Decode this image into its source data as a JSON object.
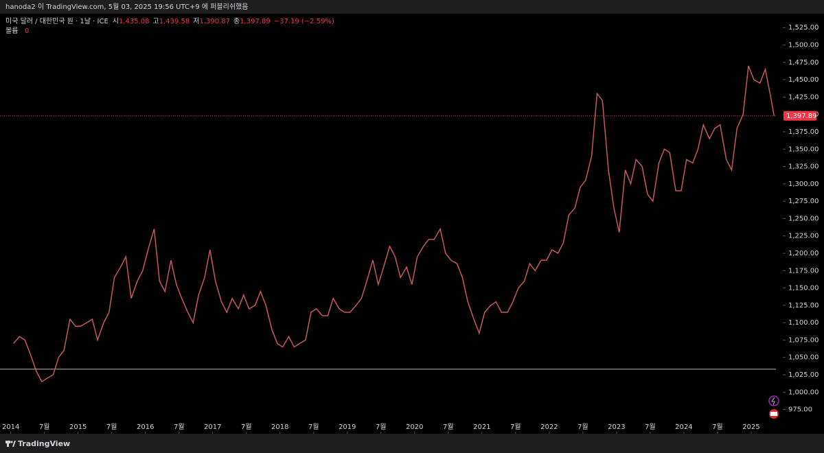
{
  "header": {
    "text": "hanoda2 이 TradingView.com, 5월 03, 2025 19:56 UTC+9 에 퍼블리쉬했음"
  },
  "footer": {
    "brand": "TradingView"
  },
  "chart_data": {
    "type": "line",
    "legend": {
      "symbol": "미국 달러 / 대한민국 원 · 1날 · ICE",
      "open_label": "시",
      "open": "1,435.08",
      "high_label": "고",
      "high": "1,439.58",
      "low_label": "저",
      "low": "1,390.87",
      "close_label": "종",
      "close": "1,397.89",
      "change": "−37.19 (−2.59%)",
      "volume_label": "볼륨",
      "volume": "0"
    },
    "series": [
      {
        "name": "USDKRW",
        "color": "#c9595b",
        "x": [
          2014.04,
          2014.13,
          2014.21,
          2014.29,
          2014.38,
          2014.46,
          2014.54,
          2014.63,
          2014.71,
          2014.79,
          2014.88,
          2014.96,
          2015.04,
          2015.13,
          2015.21,
          2015.29,
          2015.38,
          2015.46,
          2015.54,
          2015.63,
          2015.71,
          2015.79,
          2015.88,
          2015.96,
          2016.04,
          2016.13,
          2016.21,
          2016.29,
          2016.38,
          2016.46,
          2016.54,
          2016.63,
          2016.71,
          2016.79,
          2016.88,
          2016.96,
          2017.04,
          2017.13,
          2017.21,
          2017.29,
          2017.38,
          2017.46,
          2017.54,
          2017.63,
          2017.71,
          2017.79,
          2017.88,
          2017.96,
          2018.04,
          2018.13,
          2018.21,
          2018.29,
          2018.38,
          2018.46,
          2018.54,
          2018.63,
          2018.71,
          2018.79,
          2018.88,
          2018.96,
          2019.04,
          2019.13,
          2019.21,
          2019.29,
          2019.38,
          2019.46,
          2019.54,
          2019.63,
          2019.71,
          2019.79,
          2019.88,
          2019.96,
          2020.04,
          2020.13,
          2020.21,
          2020.29,
          2020.38,
          2020.46,
          2020.54,
          2020.63,
          2020.71,
          2020.79,
          2020.88,
          2020.96,
          2021.04,
          2021.13,
          2021.21,
          2021.29,
          2021.38,
          2021.46,
          2021.54,
          2021.63,
          2021.71,
          2021.79,
          2021.88,
          2021.96,
          2022.04,
          2022.13,
          2022.21,
          2022.29,
          2022.38,
          2022.46,
          2022.54,
          2022.63,
          2022.71,
          2022.79,
          2022.88,
          2022.96,
          2023.04,
          2023.13,
          2023.21,
          2023.29,
          2023.38,
          2023.46,
          2023.54,
          2023.63,
          2023.71,
          2023.79,
          2023.88,
          2023.96,
          2024.04,
          2024.13,
          2024.21,
          2024.29,
          2024.38,
          2024.46,
          2024.54,
          2024.63,
          2024.71,
          2024.79,
          2024.88,
          2024.96,
          2025.04,
          2025.13,
          2025.21,
          2025.29,
          2025.34
        ],
        "values": [
          1070,
          1080,
          1075,
          1055,
          1030,
          1015,
          1020,
          1025,
          1050,
          1060,
          1105,
          1095,
          1095,
          1100,
          1105,
          1075,
          1100,
          1115,
          1165,
          1180,
          1195,
          1135,
          1160,
          1175,
          1205,
          1235,
          1160,
          1145,
          1190,
          1155,
          1135,
          1115,
          1100,
          1140,
          1165,
          1205,
          1160,
          1130,
          1115,
          1135,
          1120,
          1140,
          1120,
          1125,
          1145,
          1125,
          1090,
          1070,
          1065,
          1080,
          1065,
          1070,
          1075,
          1115,
          1120,
          1110,
          1110,
          1135,
          1120,
          1115,
          1115,
          1125,
          1135,
          1160,
          1190,
          1155,
          1180,
          1210,
          1195,
          1165,
          1180,
          1155,
          1195,
          1210,
          1220,
          1220,
          1235,
          1200,
          1190,
          1185,
          1165,
          1130,
          1105,
          1085,
          1115,
          1125,
          1130,
          1115,
          1115,
          1130,
          1150,
          1160,
          1185,
          1175,
          1190,
          1190,
          1205,
          1200,
          1215,
          1255,
          1265,
          1295,
          1305,
          1340,
          1430,
          1420,
          1320,
          1265,
          1230,
          1320,
          1300,
          1335,
          1325,
          1285,
          1275,
          1330,
          1350,
          1345,
          1290,
          1290,
          1335,
          1330,
          1350,
          1385,
          1365,
          1380,
          1385,
          1335,
          1320,
          1380,
          1400,
          1470,
          1450,
          1445,
          1465,
          1425,
          1397.89
        ]
      }
    ],
    "horizontal_line": 1033,
    "last_price": {
      "value": 1397.89,
      "label": "1,397.89"
    },
    "xlim": [
      2013.84,
      2025.47
    ],
    "xticks": [
      2014,
      {
        "value": 2014.5,
        "label": "7월"
      },
      2015,
      {
        "value": 2015.5,
        "label": "7월"
      },
      2016,
      {
        "value": 2016.5,
        "label": "7월"
      },
      2017,
      {
        "value": 2017.5,
        "label": "7월"
      },
      2018,
      {
        "value": 2018.5,
        "label": "7월"
      },
      2019,
      {
        "value": 2019.5,
        "label": "7월"
      },
      2020,
      {
        "value": 2020.5,
        "label": "7월"
      },
      2021,
      {
        "value": 2021.5,
        "label": "7월"
      },
      2022,
      {
        "value": 2022.5,
        "label": "7월"
      },
      2023,
      {
        "value": 2023.5,
        "label": "7월"
      },
      2024,
      {
        "value": 2024.5,
        "label": "7월"
      },
      2025
    ],
    "ylim": [
      940,
      1545
    ],
    "yticks": [
      {
        "value": 975,
        "label": "975.00"
      },
      {
        "value": 1000,
        "label": "1,000.00"
      },
      {
        "value": 1025,
        "label": "1,025.00"
      },
      {
        "value": 1050,
        "label": "1,050.00"
      },
      {
        "value": 1075,
        "label": "1,075.00"
      },
      {
        "value": 1100,
        "label": "1,100.00"
      },
      {
        "value": 1125,
        "label": "1,125.00"
      },
      {
        "value": 1150,
        "label": "1,150.00"
      },
      {
        "value": 1175,
        "label": "1,175.00"
      },
      {
        "value": 1200,
        "label": "1,200.00"
      },
      {
        "value": 1225,
        "label": "1,225.00"
      },
      {
        "value": 1250,
        "label": "1,250.00"
      },
      {
        "value": 1275,
        "label": "1,275.00"
      },
      {
        "value": 1300,
        "label": "1,300.00"
      },
      {
        "value": 1325,
        "label": "1,325.00"
      },
      {
        "value": 1350,
        "label": "1,350.00"
      },
      {
        "value": 1375,
        "label": "1,375.00"
      },
      {
        "value": 1400,
        "label": "1,400.00"
      },
      {
        "value": 1425,
        "label": "1,425.00"
      },
      {
        "value": 1450,
        "label": "1,450.00"
      },
      {
        "value": 1475,
        "label": "1,475.00"
      },
      {
        "value": 1500,
        "label": "1,500.00"
      },
      {
        "value": 1525,
        "label": "1,525.00"
      }
    ]
  }
}
